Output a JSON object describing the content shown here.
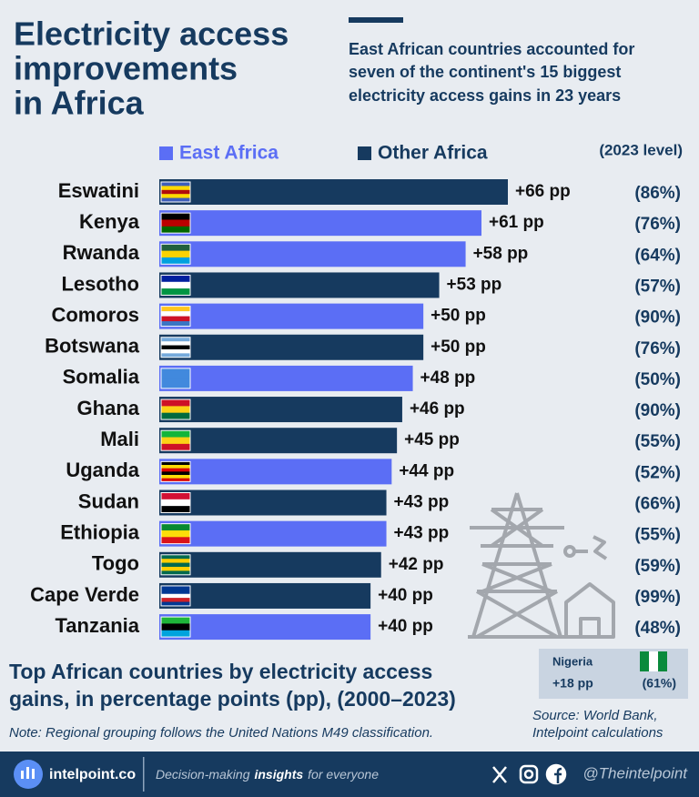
{
  "chart_data": {
    "type": "bar",
    "title_lines": [
      "Electricity access",
      "improvements",
      "in Africa"
    ],
    "subtitle_lines": [
      "East African countries accounted for",
      "seven of the continent's 15 biggest",
      "electricity access gains in 23 years"
    ],
    "series": [
      {
        "name": "East Africa",
        "color": "#5b6ef5"
      },
      {
        "name": "Other Africa",
        "color": "#163a5f"
      }
    ],
    "level_title": "(2023 level)",
    "categories": [
      "Eswatini",
      "Kenya",
      "Rwanda",
      "Lesotho",
      "Comoros",
      "Botswana",
      "Somalia",
      "Ghana",
      "Mali",
      "Uganda",
      "Sudan",
      "Ethiopia",
      "Togo",
      "Cape Verde",
      "Tanzania"
    ],
    "regions": [
      "Other Africa",
      "East Africa",
      "East Africa",
      "Other Africa",
      "East Africa",
      "Other Africa",
      "East Africa",
      "Other Africa",
      "Other Africa",
      "East Africa",
      "Other Africa",
      "East Africa",
      "Other Africa",
      "Other Africa",
      "East Africa"
    ],
    "values": [
      66,
      61,
      58,
      53,
      50,
      50,
      48,
      46,
      45,
      44,
      43,
      43,
      42,
      40,
      40
    ],
    "value_labels": [
      "+66 pp",
      "+61 pp",
      "+58 pp",
      "+53 pp",
      "+50 pp",
      "+50 pp",
      "+48 pp",
      "+46 pp",
      "+45 pp",
      "+44 pp",
      "+43 pp",
      "+43 pp",
      "+42 pp",
      "+40 pp",
      "+40 pp"
    ],
    "level_labels": [
      "(86%)",
      "(76%)",
      "(64%)",
      "(57%)",
      "(90%)",
      "(76%)",
      "(50%)",
      "(90%)",
      "(55%)",
      "(52%)",
      "(66%)",
      "(55%)",
      "(59%)",
      "(99%)",
      "(48%)"
    ],
    "inset": {
      "name": "Nigeria",
      "value_label": "+18 pp",
      "level_label": "(61%)"
    },
    "caption_lines": [
      "Top African countries by electricity access",
      "gains, in percentage points (pp), (2000–2023)"
    ],
    "note": "Note: Regional grouping follows the United Nations M49 classification.",
    "source_lines": [
      "Source: World Bank,",
      "Intelpoint calculations"
    ],
    "footer": {
      "brand": "intelpoint.co",
      "tagline_parts": [
        "Decision-making",
        "insights",
        "for everyone"
      ],
      "handle": "@Theintelpoint"
    }
  }
}
